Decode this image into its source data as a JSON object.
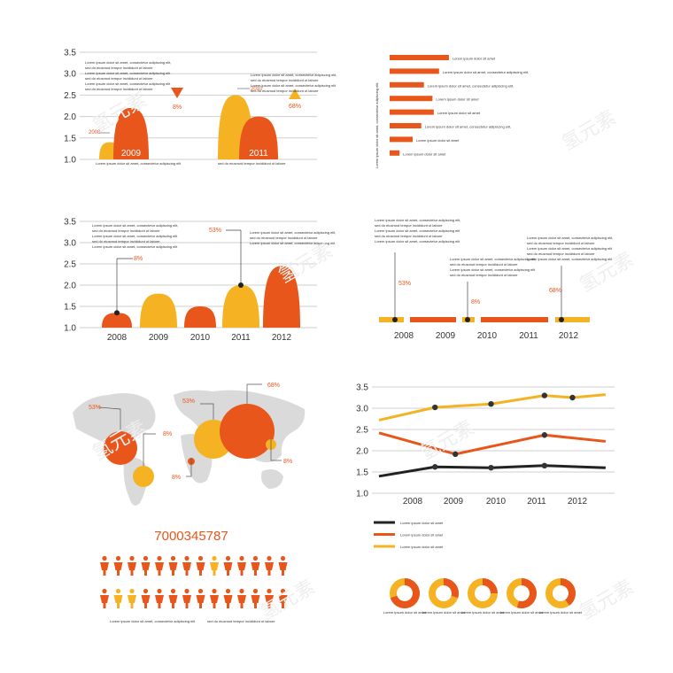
{
  "colors": {
    "orange": "#e8561b",
    "yellow": "#f5b324",
    "black": "#222222",
    "grid": "#cfcfcf",
    "map": "#dadada"
  },
  "lorem": {
    "short": "Lorem ipsum dolor sit amet",
    "long": "Lorem ipsum dolor sit amet, consectetur adipiscing elit,",
    "caption": "Lorem ipsum dolor sit amet, consectetur adipiscing elit",
    "caption2": "sed do eiusmod tempor incididunt ut labore",
    "para": "Lorem ipsum dolor sit amet, consectetur adipiscing elit, sed do eiusmod tempor incididunt ut labore et dolore magna aliqua. Ut enim ad minim veniam, quis nostrud exercitation ullamco laboris nisi ut aliquip ex ea commodo consequat. Duis aute irure dolor in reprehenderit in voluptate velit esse cillum dolore eu fugiat nulla pariatur. Excepteur sint occaecat cupidatat non proident, sunt in culpa qui officia deserunt mollit anim id est laborum."
  },
  "chart_data": [
    {
      "type": "area",
      "y_ticks": [
        "3.5",
        "3.0",
        "2.5",
        "2.0",
        "1.5",
        "1.0"
      ],
      "ylim": [
        1.0,
        3.5
      ],
      "peak_labels": [
        "2009",
        "2011"
      ],
      "small_labels": [
        "2008",
        "2010"
      ],
      "series": [
        {
          "values": [
            1.4,
            2.5
          ]
        },
        {
          "values": [
            2.2,
            2.0
          ]
        }
      ],
      "markers": [
        {
          "shape": "triangle-down",
          "label": "8%"
        },
        {
          "shape": "triangle-up",
          "label": "68%"
        }
      ]
    },
    {
      "type": "bar",
      "orientation": "horizontal",
      "categories": [
        "Lorem ipsum dolor sit amet",
        "Lorem ipsum dolor sit amet, consectetur adipiscing elit,",
        "Lorem ipsum dolor sit amet, consectetur adipiscing elit,",
        "Lorem ipsum dolor sit amet",
        "Lorem ipsum dolor sit amet",
        "Lorem ipsum dolor sit amet, consectetur adipiscing elit,",
        "Lorem ipsum dolor sit amet",
        "Lorem ipsum dolor sit amet"
      ],
      "values": [
        90,
        75,
        52,
        65,
        67,
        48,
        35,
        15
      ]
    },
    {
      "type": "area",
      "categories": [
        "2008",
        "2009",
        "2010",
        "2011",
        "2012"
      ],
      "y_ticks": [
        "3.5",
        "3.0",
        "2.5",
        "2.0",
        "1.5",
        "1.0"
      ],
      "ylim": [
        1.0,
        3.5
      ],
      "values": [
        1.35,
        1.8,
        1.5,
        2.0,
        2.45
      ],
      "callouts": [
        {
          "category": "2008",
          "label": "8%"
        },
        {
          "category": "2011",
          "label": "53%"
        }
      ]
    },
    {
      "type": "timeline",
      "categories": [
        "2008",
        "2009",
        "2010",
        "2011",
        "2012"
      ],
      "callouts": [
        {
          "label": "53%"
        },
        {
          "label": "8%"
        },
        {
          "label": "68%"
        }
      ]
    },
    {
      "type": "bubble-map",
      "bubbles": [
        {
          "label": "53%",
          "color": "orange"
        },
        {
          "label": "8%",
          "color": "yellow"
        },
        {
          "label": "8%",
          "color": "orange"
        },
        {
          "label": "53%",
          "color": "yellow"
        },
        {
          "label": "68%",
          "color": "orange"
        },
        {
          "label": "8%",
          "color": "yellow"
        }
      ]
    },
    {
      "type": "line",
      "x": [
        "2008",
        "2009",
        "2010",
        "2011",
        "2012"
      ],
      "y_ticks": [
        "3.5",
        "3.0",
        "2.5",
        "2.0",
        "1.5",
        "1.0"
      ],
      "ylim": [
        1.0,
        3.5
      ],
      "series": [
        {
          "name": "Lorem ipsum dolor sit amet",
          "color": "black",
          "points": [
            [
              0,
              1.4
            ],
            [
              1.1,
              1.62
            ],
            [
              2.2,
              1.6
            ],
            [
              3.25,
              1.65
            ],
            [
              4.45,
              1.6
            ]
          ]
        },
        {
          "name": "Lorem ipsum dolor sit amet",
          "color": "orange",
          "points": [
            [
              0,
              2.42
            ],
            [
              1.5,
              1.92
            ],
            [
              3.25,
              2.37
            ],
            [
              4.45,
              2.22
            ]
          ]
        },
        {
          "name": "Lorem ipsum dolor sit amet",
          "color": "yellow",
          "points": [
            [
              0,
              2.72
            ],
            [
              1.1,
              3.02
            ],
            [
              2.2,
              3.1
            ],
            [
              3.25,
              3.3
            ],
            [
              3.8,
              3.25
            ],
            [
              4.45,
              3.32
            ]
          ]
        }
      ]
    },
    {
      "type": "pictogram",
      "headline": "7000345787"
    },
    {
      "type": "pie",
      "shares": [
        70,
        30,
        25,
        55,
        40
      ]
    }
  ]
}
